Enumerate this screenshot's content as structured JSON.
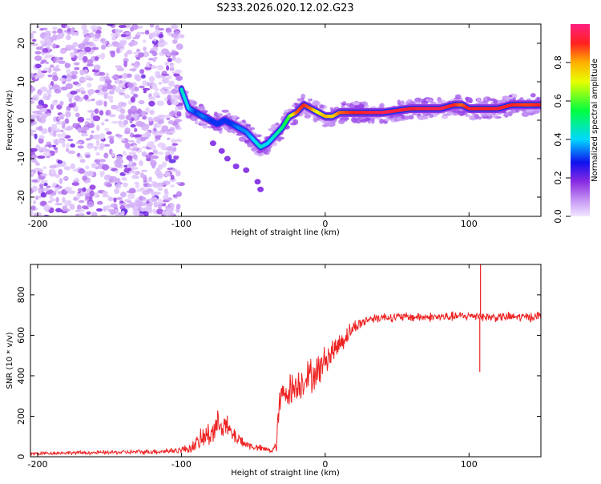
{
  "title": "S233.2026.020.12.02.G23",
  "chart_data": [
    {
      "type": "heatmap",
      "name": "spectrogram",
      "xlabel": "Height of straight line (km)",
      "ylabel": "Frequency (Hz)",
      "xlim": [
        -205,
        150
      ],
      "ylim": [
        -25,
        25
      ],
      "xticks": [
        -200,
        -100,
        0,
        100
      ],
      "yticks": [
        -20,
        -10,
        0,
        10,
        20
      ],
      "ridge": {
        "x": [
          -100,
          -95,
          -90,
          -85,
          -80,
          -75,
          -70,
          -65,
          -60,
          -55,
          -50,
          -45,
          -40,
          -35,
          -30,
          -25,
          -20,
          -15,
          -10,
          -5,
          0,
          5,
          10,
          20,
          40,
          60,
          80,
          90,
          95,
          100,
          110,
          120,
          130,
          140,
          150
        ],
        "freq": [
          8,
          3,
          2,
          1,
          0,
          -1,
          0,
          -1,
          -2,
          -3,
          -5,
          -7,
          -6,
          -4,
          -2,
          1,
          2,
          4,
          3,
          2,
          1,
          1,
          2,
          2,
          2,
          3,
          3,
          4,
          4,
          3,
          3,
          3,
          4,
          4,
          4
        ],
        "amp": [
          0.45,
          0.4,
          0.3,
          0.35,
          0.3,
          0.3,
          0.3,
          0.3,
          0.35,
          0.35,
          0.4,
          0.45,
          0.4,
          0.45,
          0.5,
          0.6,
          0.85,
          0.9,
          0.85,
          0.7,
          0.8,
          0.75,
          0.85,
          0.9,
          0.95,
          0.92,
          0.95,
          0.9,
          0.85,
          0.92,
          0.9,
          0.92,
          0.9,
          0.88,
          0.9
        ]
      },
      "noise_region_x": [
        -205,
        -100
      ],
      "secondary_branch": {
        "x": [
          -78,
          -72,
          -68,
          -62,
          -55,
          -47,
          -45
        ],
        "freq": [
          -6,
          -8,
          -10,
          -12,
          -13,
          -16,
          -18
        ]
      },
      "colorbar": {
        "label": "Normalized spectral amplitude",
        "ticks": [
          0.0,
          0.2,
          0.4,
          0.6,
          0.8
        ],
        "range": [
          0,
          1
        ]
      }
    },
    {
      "type": "line",
      "name": "snr",
      "xlabel": "Height of straight line (km)",
      "ylabel": "SNR (10 * v/v)",
      "xlim": [
        -205,
        150
      ],
      "ylim": [
        0,
        950
      ],
      "xticks": [
        -200,
        -100,
        0,
        100
      ],
      "yticks": [
        0,
        200,
        400,
        600,
        800
      ],
      "color": "#ee2222",
      "series": [
        {
          "name": "SNR",
          "x": [
            -205,
            -180,
            -160,
            -120,
            -105,
            -100,
            -95,
            -90,
            -85,
            -80,
            -75,
            -72,
            -68,
            -65,
            -60,
            -55,
            -50,
            -45,
            -40,
            -37,
            -34,
            -32,
            -30,
            -28,
            -25,
            -20,
            -15,
            -10,
            -5,
            0,
            5,
            10,
            15,
            20,
            25,
            30,
            40,
            60,
            80,
            100,
            108,
            110,
            120,
            140,
            150
          ],
          "base": [
            15,
            20,
            20,
            25,
            30,
            35,
            40,
            60,
            90,
            120,
            150,
            180,
            140,
            110,
            90,
            60,
            50,
            40,
            35,
            30,
            50,
            250,
            300,
            320,
            330,
            350,
            380,
            400,
            420,
            480,
            520,
            560,
            600,
            640,
            660,
            680,
            690,
            690,
            690,
            695,
            700,
            690,
            690,
            690,
            695
          ],
          "spread": [
            15,
            15,
            15,
            20,
            25,
            30,
            40,
            60,
            100,
            120,
            120,
            120,
            100,
            80,
            60,
            40,
            30,
            30,
            25,
            25,
            80,
            120,
            120,
            140,
            140,
            140,
            140,
            150,
            140,
            120,
            110,
            100,
            80,
            60,
            50,
            40,
            40,
            40,
            40,
            40,
            40,
            40,
            40,
            40,
            40
          ]
        }
      ],
      "spikes": [
        {
          "x": 108,
          "y": 950
        },
        {
          "x": 107.5,
          "y": 420
        }
      ]
    }
  ]
}
